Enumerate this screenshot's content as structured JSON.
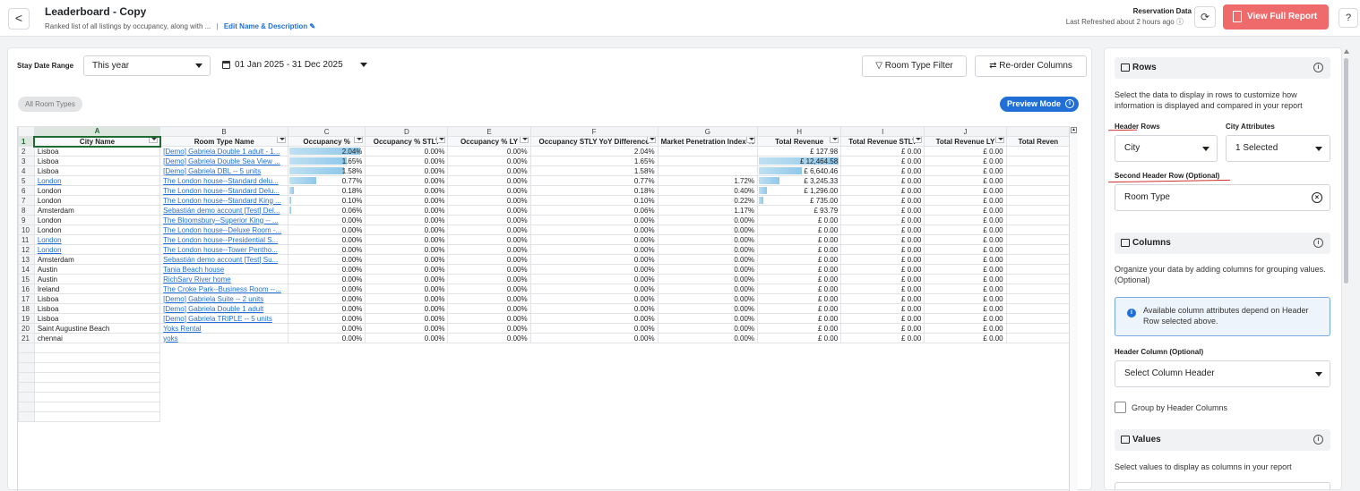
{
  "header": {
    "back_label": "<",
    "title": "Leaderboard - Copy",
    "subtitle": "Ranked list of all listings by occupancy, along with ...",
    "separator": "|",
    "edit_label": "Edit Name & Description",
    "reservation_title": "Reservation Data",
    "reservation_refreshed": "Last Refreshed about 2 hours ago",
    "view_full_report": "View Full Report",
    "help_label": "?",
    "refresh_label": "⟳"
  },
  "controls": {
    "stay_date_range_label": "Stay Date Range",
    "stay_date_range_value": "This year",
    "date_range_value": "01 Jan 2025 - 31 Dec 2025",
    "room_type_filter": "Room Type Filter",
    "reorder_columns": "Re-order Columns",
    "chip_label": "All Room Types",
    "preview_mode": "Preview Mode"
  },
  "sheet": {
    "column_letters": [
      "A",
      "B",
      "C",
      "D",
      "E",
      "F",
      "G",
      "H",
      "I",
      "J",
      ""
    ],
    "headers": [
      "City Name",
      "Room Type Name",
      "Occupancy %",
      "Occupancy % STLY",
      "Occupancy % LY",
      "Occupancy STLY YoY Difference",
      "Market Penetration Index %",
      "Total Revenue",
      "Total Revenue STLY",
      "Total Revenue LY",
      "Total Reven"
    ],
    "rows": [
      {
        "n": "2",
        "city": "Lisboa",
        "city_link": false,
        "rt": "[Demo] Gabriela Double 1 adult - 1...",
        "occ": "2.04%",
        "occ_frac": 0.93,
        "stly": "0.00%",
        "ly": "0.00%",
        "yoy": "2.04%",
        "mpi": "",
        "rev": "£ 127.98",
        "rev_frac": 0,
        "rstly": "£ 0.00",
        "rly": "£ 0.00"
      },
      {
        "n": "3",
        "city": "Lisboa",
        "city_link": false,
        "rt": "[Demo] Gabriela Double Sea View ...",
        "occ": "1.65%",
        "occ_frac": 0.75,
        "stly": "0.00%",
        "ly": "0.00%",
        "yoy": "1.65%",
        "mpi": "",
        "rev": "£ 12,464.58",
        "rev_frac": 0.97,
        "rstly": "£ 0.00",
        "rly": "£ 0.00"
      },
      {
        "n": "4",
        "city": "Lisboa",
        "city_link": false,
        "rt": "[Demo] Gabriela DBL -- 5 units",
        "occ": "1.58%",
        "occ_frac": 0.72,
        "stly": "0.00%",
        "ly": "0.00%",
        "yoy": "1.58%",
        "mpi": "",
        "rev": "£ 6,640.46",
        "rev_frac": 0.52,
        "rstly": "£ 0.00",
        "rly": "£ 0.00"
      },
      {
        "n": "5",
        "city": "London",
        "city_link": true,
        "rt": "The London house--Standard delu...",
        "occ": "0.77%",
        "occ_frac": 0.35,
        "stly": "0.00%",
        "ly": "0.00%",
        "yoy": "0.77%",
        "mpi": "1.72%",
        "rev": "£ 3,245.33",
        "rev_frac": 0.25,
        "rstly": "£ 0.00",
        "rly": "£ 0.00"
      },
      {
        "n": "6",
        "city": "London",
        "city_link": false,
        "rt": "The London house--Standard Delu...",
        "occ": "0.18%",
        "occ_frac": 0.06,
        "stly": "0.00%",
        "ly": "0.00%",
        "yoy": "0.18%",
        "mpi": "0.40%",
        "rev": "£ 1,296.00",
        "rev_frac": 0.1,
        "rstly": "£ 0.00",
        "rly": "£ 0.00"
      },
      {
        "n": "7",
        "city": "London",
        "city_link": false,
        "rt": "The London house--Standard King ...",
        "occ": "0.10%",
        "occ_frac": 0.03,
        "stly": "0.00%",
        "ly": "0.00%",
        "yoy": "0.10%",
        "mpi": "0.22%",
        "rev": "£ 735.00",
        "rev_frac": 0.05,
        "rstly": "£ 0.00",
        "rly": "£ 0.00"
      },
      {
        "n": "8",
        "city": "Amsterdam",
        "city_link": false,
        "rt": "Sebastián demo account [Test] Del...",
        "occ": "0.06%",
        "occ_frac": 0.02,
        "stly": "0.00%",
        "ly": "0.00%",
        "yoy": "0.06%",
        "mpi": "1.17%",
        "rev": "£ 93.79",
        "rev_frac": 0,
        "rstly": "£ 0.00",
        "rly": "£ 0.00"
      },
      {
        "n": "9",
        "city": "London",
        "city_link": false,
        "rt": "The Bloomsbury--Superior King -- ...",
        "occ": "0.00%",
        "occ_frac": 0,
        "stly": "0.00%",
        "ly": "0.00%",
        "yoy": "0.00%",
        "mpi": "0.00%",
        "rev": "£ 0.00",
        "rev_frac": 0,
        "rstly": "£ 0.00",
        "rly": "£ 0.00"
      },
      {
        "n": "10",
        "city": "London",
        "city_link": false,
        "rt": "The London house--Deluxe Room -...",
        "occ": "0.00%",
        "occ_frac": 0,
        "stly": "0.00%",
        "ly": "0.00%",
        "yoy": "0.00%",
        "mpi": "0.00%",
        "rev": "£ 0.00",
        "rev_frac": 0,
        "rstly": "£ 0.00",
        "rly": "£ 0.00"
      },
      {
        "n": "11",
        "city": "London",
        "city_link": true,
        "rt": "The London house--Presidential S...",
        "occ": "0.00%",
        "occ_frac": 0,
        "stly": "0.00%",
        "ly": "0.00%",
        "yoy": "0.00%",
        "mpi": "0.00%",
        "rev": "£ 0.00",
        "rev_frac": 0,
        "rstly": "£ 0.00",
        "rly": "£ 0.00"
      },
      {
        "n": "12",
        "city": "London",
        "city_link": true,
        "rt": "The London house--Tower Pentho...",
        "occ": "0.00%",
        "occ_frac": 0,
        "stly": "0.00%",
        "ly": "0.00%",
        "yoy": "0.00%",
        "mpi": "0.00%",
        "rev": "£ 0.00",
        "rev_frac": 0,
        "rstly": "£ 0.00",
        "rly": "£ 0.00"
      },
      {
        "n": "13",
        "city": "Amsterdam",
        "city_link": false,
        "rt": "Sebastián demo account [Test] Su...",
        "occ": "0.00%",
        "occ_frac": 0,
        "stly": "0.00%",
        "ly": "0.00%",
        "yoy": "0.00%",
        "mpi": "0.00%",
        "rev": "£ 0.00",
        "rev_frac": 0,
        "rstly": "£ 0.00",
        "rly": "£ 0.00"
      },
      {
        "n": "14",
        "city": "Austin",
        "city_link": false,
        "rt": "Tania Beach house",
        "occ": "0.00%",
        "occ_frac": 0,
        "stly": "0.00%",
        "ly": "0.00%",
        "yoy": "0.00%",
        "mpi": "0.00%",
        "rev": "£ 0.00",
        "rev_frac": 0,
        "rstly": "£ 0.00",
        "rly": "£ 0.00"
      },
      {
        "n": "15",
        "city": "Austin",
        "city_link": false,
        "rt": "RichSarv River home",
        "occ": "0.00%",
        "occ_frac": 0,
        "stly": "0.00%",
        "ly": "0.00%",
        "yoy": "0.00%",
        "mpi": "0.00%",
        "rev": "£ 0.00",
        "rev_frac": 0,
        "rstly": "£ 0.00",
        "rly": "£ 0.00"
      },
      {
        "n": "16",
        "city": "Ireland",
        "city_link": false,
        "rt": "The Croke Park--Business Room --...",
        "occ": "0.00%",
        "occ_frac": 0,
        "stly": "0.00%",
        "ly": "0.00%",
        "yoy": "0.00%",
        "mpi": "0.00%",
        "rev": "£ 0.00",
        "rev_frac": 0,
        "rstly": "£ 0.00",
        "rly": "£ 0.00"
      },
      {
        "n": "17",
        "city": "Lisboa",
        "city_link": false,
        "rt": "[Demo] Gabriela Suite -- 2 units",
        "occ": "0.00%",
        "occ_frac": 0,
        "stly": "0.00%",
        "ly": "0.00%",
        "yoy": "0.00%",
        "mpi": "0.00%",
        "rev": "£ 0.00",
        "rev_frac": 0,
        "rstly": "£ 0.00",
        "rly": "£ 0.00"
      },
      {
        "n": "18",
        "city": "Lisboa",
        "city_link": false,
        "rt": "[Demo] Gabriela Double 1 adult",
        "occ": "0.00%",
        "occ_frac": 0,
        "stly": "0.00%",
        "ly": "0.00%",
        "yoy": "0.00%",
        "mpi": "0.00%",
        "rev": "£ 0.00",
        "rev_frac": 0,
        "rstly": "£ 0.00",
        "rly": "£ 0.00"
      },
      {
        "n": "19",
        "city": "Lisboa",
        "city_link": false,
        "rt": "[Demo] Gabriela TRIPLE -- 5 units",
        "occ": "0.00%",
        "occ_frac": 0,
        "stly": "0.00%",
        "ly": "0.00%",
        "yoy": "0.00%",
        "mpi": "0.00%",
        "rev": "£ 0.00",
        "rev_frac": 0,
        "rstly": "£ 0.00",
        "rly": "£ 0.00"
      },
      {
        "n": "20",
        "city": "Saint Augustine Beach",
        "city_link": false,
        "rt": "Yoks Rental",
        "occ": "0.00%",
        "occ_frac": 0,
        "stly": "0.00%",
        "ly": "0.00%",
        "yoy": "0.00%",
        "mpi": "0.00%",
        "rev": "£ 0.00",
        "rev_frac": 0,
        "rstly": "£ 0.00",
        "rly": "£ 0.00"
      },
      {
        "n": "21",
        "city": "chennai",
        "city_link": false,
        "rt": "yoks",
        "occ": "0.00%",
        "occ_frac": 0,
        "stly": "0.00%",
        "ly": "0.00%",
        "yoy": "0.00%",
        "mpi": "0.00%",
        "rev": "£ 0.00",
        "rev_frac": 0,
        "rstly": "£ 0.00",
        "rly": "£ 0.00"
      }
    ]
  },
  "side": {
    "rows_title": "Rows",
    "rows_desc": "Select the data to display in rows to customize how information is displayed and compared in your report",
    "header_rows_label": "Header Rows",
    "city_attributes_label": "City Attributes",
    "header_rows_value": "City",
    "city_attributes_value": "1 Selected",
    "second_header_label": "Second Header Row (Optional)",
    "second_header_value": "Room Type",
    "columns_title": "Columns",
    "columns_desc": "Organize your data by adding columns for grouping values. (Optional)",
    "info_text": "Available column attributes depend on Header Row selected above.",
    "header_column_label": "Header Column (Optional)",
    "header_column_value": "Select Column Header",
    "group_label": "Group by Header Columns",
    "values_title": "Values",
    "values_desc": "Select values to display as columns in your report"
  }
}
